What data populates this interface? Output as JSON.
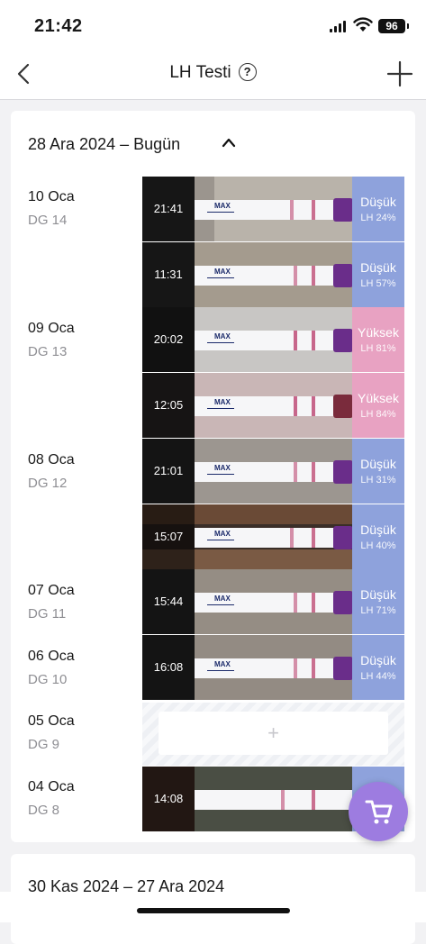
{
  "status_bar": {
    "time": "21:42",
    "battery": "96"
  },
  "nav": {
    "title": "LH Testi",
    "help": "?"
  },
  "section": {
    "title": "28 Ara 2024 – Bugün"
  },
  "section_next": {
    "title": "30 Kas 2024 – 27 Ara 2024"
  },
  "days": [
    {
      "date": "10 Oca",
      "cycle": "DG 14"
    },
    {
      "date": "09 Oca",
      "cycle": "DG 13"
    },
    {
      "date": "08 Oca",
      "cycle": "DG 12"
    },
    {
      "date": "07 Oca",
      "cycle": "DG 11"
    },
    {
      "date": "06 Oca",
      "cycle": "DG 10"
    },
    {
      "date": "05 Oca",
      "cycle": "DG 9"
    },
    {
      "date": "04 Oca",
      "cycle": "DG 8"
    }
  ],
  "tests": [
    {
      "time": "21:41",
      "level": "Düşük",
      "lh": "LH 24%",
      "status": "low",
      "value": 24
    },
    {
      "time": "11:31",
      "level": "Düşük",
      "lh": "LH 57%",
      "status": "low",
      "value": 57
    },
    {
      "time": "20:02",
      "level": "Yüksek",
      "lh": "LH 81%",
      "status": "high",
      "value": 81
    },
    {
      "time": "12:05",
      "level": "Yüksek",
      "lh": "LH 84%",
      "status": "high",
      "value": 84
    },
    {
      "time": "21:01",
      "level": "Düşük",
      "lh": "LH 31%",
      "status": "low",
      "value": 31
    },
    {
      "time": "15:07",
      "level": "Düşük",
      "lh": "LH 40%",
      "status": "low",
      "value": 40
    },
    {
      "time": "15:44",
      "level": "Düşük",
      "lh": "LH 71%",
      "status": "low",
      "value": 71
    },
    {
      "time": "16:08",
      "level": "Düşük",
      "lh": "LH 44%",
      "status": "low",
      "value": 44
    },
    {
      "time": "14:08",
      "level": "",
      "lh": "",
      "status": "low",
      "value": null
    }
  ],
  "strip_label": "MAX",
  "add_label": "+",
  "colors": {
    "low": "#8ea2dc",
    "high": "#e8a2c2",
    "fab": "#9d7ce0"
  },
  "icons": {
    "back": "chevron-left-icon",
    "add": "plus-icon",
    "help": "question-circle-icon",
    "collapse": "chevron-up-icon",
    "fab": "cart-icon"
  }
}
